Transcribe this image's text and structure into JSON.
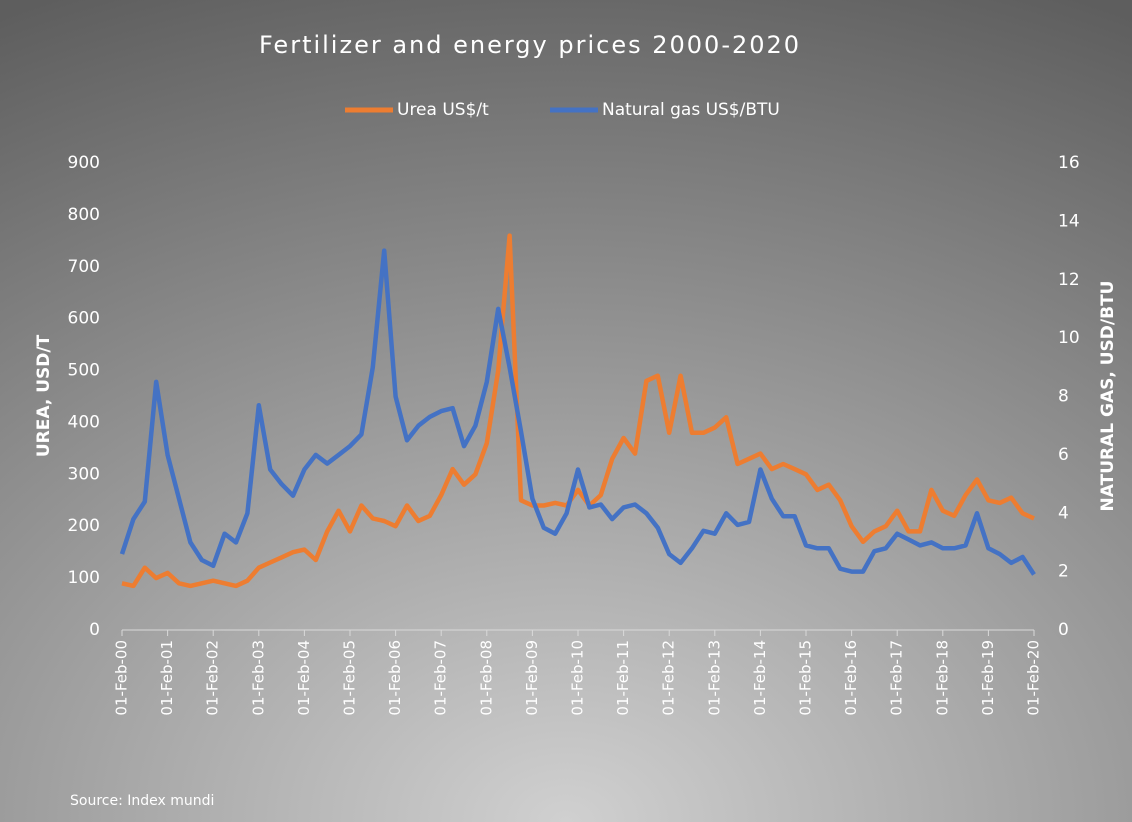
{
  "chart_data": {
    "type": "line",
    "title": "Fertilizer and energy prices 2000-2020",
    "ylabel": "UREA, USD/T",
    "y2label": "NATURAL GAS, USD/BTU",
    "source": "Source: Index mundi",
    "legend": "top",
    "categories": [
      "01-Feb-00",
      null,
      null,
      null,
      "01-Feb-01",
      null,
      null,
      null,
      "01-Feb-02",
      null,
      null,
      null,
      "01-Feb-03",
      null,
      null,
      null,
      "01-Feb-04",
      null,
      null,
      null,
      "01-Feb-05",
      null,
      null,
      null,
      "01-Feb-06",
      null,
      null,
      null,
      "01-Feb-07",
      null,
      null,
      null,
      "01-Feb-08",
      null,
      null,
      null,
      "01-Feb-09",
      null,
      null,
      null,
      "01-Feb-10",
      null,
      null,
      null,
      "01-Feb-11",
      null,
      null,
      null,
      "01-Feb-12",
      null,
      null,
      null,
      "01-Feb-13",
      null,
      null,
      null,
      "01-Feb-14",
      null,
      null,
      null,
      "01-Feb-15",
      null,
      null,
      null,
      "01-Feb-16",
      null,
      null,
      null,
      "01-Feb-17",
      null,
      null,
      null,
      "01-Feb-18",
      null,
      null,
      null,
      "01-Feb-19",
      null,
      null,
      null,
      "01-Feb-20"
    ],
    "series": [
      {
        "name": "Urea US$/t",
        "color": "#ED7D31",
        "axis": "y",
        "values": [
          90,
          85,
          120,
          100,
          110,
          90,
          85,
          90,
          95,
          90,
          85,
          95,
          120,
          130,
          140,
          150,
          155,
          135,
          190,
          230,
          190,
          240,
          215,
          210,
          200,
          240,
          210,
          220,
          260,
          310,
          280,
          300,
          360,
          500,
          760,
          250,
          240,
          240,
          245,
          240,
          270,
          240,
          260,
          330,
          370,
          340,
          480,
          490,
          380,
          490,
          380,
          380,
          390,
          410,
          320,
          330,
          340,
          310,
          320,
          310,
          300,
          270,
          280,
          250,
          200,
          170,
          190,
          200,
          230,
          190,
          190,
          270,
          230,
          220,
          260,
          290,
          250,
          245,
          255,
          225,
          215
        ]
      },
      {
        "name": "Natural gas US$/BTU",
        "color": "#4472C4",
        "axis": "y2",
        "values": [
          2.6,
          3.8,
          4.4,
          8.5,
          6.0,
          4.5,
          3.0,
          2.4,
          2.2,
          3.3,
          3.0,
          4.0,
          7.7,
          5.5,
          5.0,
          4.6,
          5.5,
          6.0,
          5.7,
          6.0,
          6.3,
          6.7,
          9.0,
          13.0,
          8.0,
          6.5,
          7.0,
          7.3,
          7.5,
          7.6,
          6.3,
          7.0,
          8.5,
          11.0,
          9.0,
          6.8,
          4.5,
          3.5,
          3.3,
          4.0,
          5.5,
          4.2,
          4.3,
          3.8,
          4.2,
          4.3,
          4.0,
          3.5,
          2.6,
          2.3,
          2.8,
          3.4,
          3.3,
          4.0,
          3.6,
          3.7,
          5.5,
          4.5,
          3.9,
          3.9,
          2.9,
          2.8,
          2.8,
          2.1,
          2.0,
          2.0,
          2.7,
          2.8,
          3.3,
          3.1,
          2.9,
          3.0,
          2.8,
          2.8,
          2.9,
          4.0,
          2.8,
          2.6,
          2.3,
          2.5,
          1.9
        ]
      }
    ],
    "ylim": [
      0,
      900
    ],
    "yticks": [
      0,
      100,
      200,
      300,
      400,
      500,
      600,
      700,
      800,
      900
    ],
    "y2lim": [
      0,
      16
    ],
    "y2ticks": [
      0,
      2,
      4,
      6,
      8,
      10,
      12,
      14,
      16
    ],
    "grid": false
  }
}
